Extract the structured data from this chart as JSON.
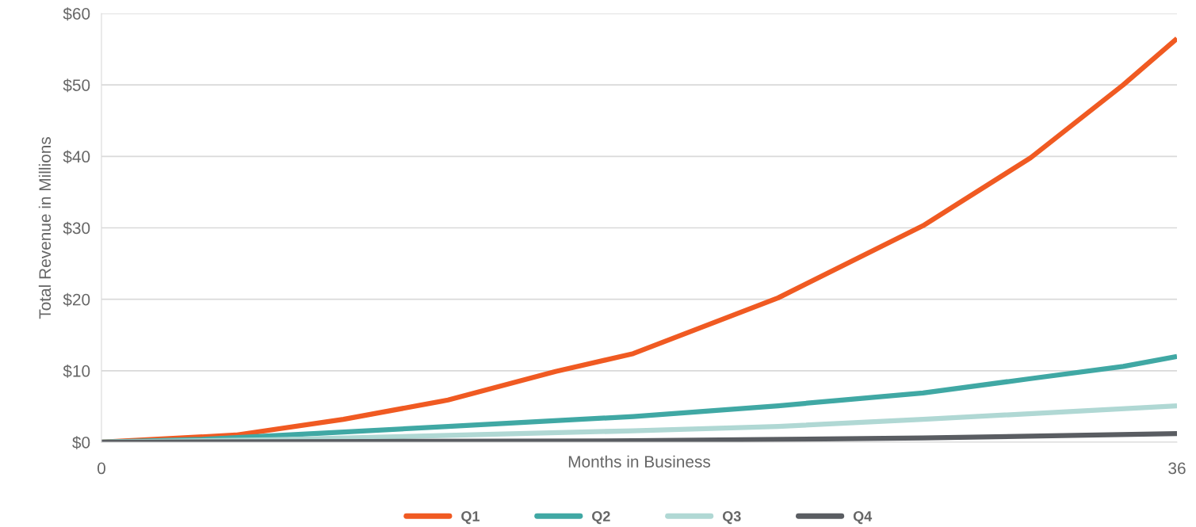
{
  "chart_data": {
    "type": "line",
    "xlabel": "Months in Business",
    "ylabel": "Total Revenue in Millions",
    "xlim": [
      0,
      36
    ],
    "xticks": [
      0,
      36
    ],
    "ylim": [
      0,
      60
    ],
    "yticks": [
      {
        "value": 0,
        "label": "$0"
      },
      {
        "value": 10,
        "label": "$10"
      },
      {
        "value": 20,
        "label": "$20"
      },
      {
        "value": 30,
        "label": "$30"
      },
      {
        "value": 40,
        "label": "$40"
      },
      {
        "value": 50,
        "label": "$50"
      },
      {
        "value": 60,
        "label": "$60"
      }
    ],
    "grid": "y",
    "legend": "bottom",
    "marker": "none",
    "line_style": "solid",
    "series": [
      {
        "name": "Q1",
        "color": "#f05a22",
        "x": [
          0,
          4.5,
          8.1,
          11.6,
          15.2,
          17.8,
          22.65,
          27.5,
          31.1,
          34.2,
          36
        ],
        "values": [
          0,
          1.0,
          3.2,
          5.9,
          9.9,
          12.4,
          20.2,
          30.3,
          39.8,
          50,
          56.5
        ]
      },
      {
        "name": "Q2",
        "color": "#40a8a4",
        "x": [
          0,
          3.4,
          7.1,
          11.6,
          17.8,
          22.65,
          27.5,
          31.1,
          34.2,
          36
        ],
        "values": [
          0,
          0.4,
          1.2,
          2.2,
          3.6,
          5.1,
          6.9,
          8.9,
          10.6,
          12.0
        ]
      },
      {
        "name": "Q3",
        "color": "#b0d8d4",
        "x": [
          0,
          5.7,
          11.6,
          17.8,
          22.65,
          27.5,
          36
        ],
        "values": [
          0,
          0.35,
          0.95,
          1.6,
          2.2,
          3.2,
          5.1
        ]
      },
      {
        "name": "Q4",
        "color": "#5a5d62",
        "x": [
          0,
          9,
          17.8,
          27.5,
          36
        ],
        "values": [
          0,
          0.1,
          0.2,
          0.6,
          1.2
        ]
      }
    ]
  }
}
